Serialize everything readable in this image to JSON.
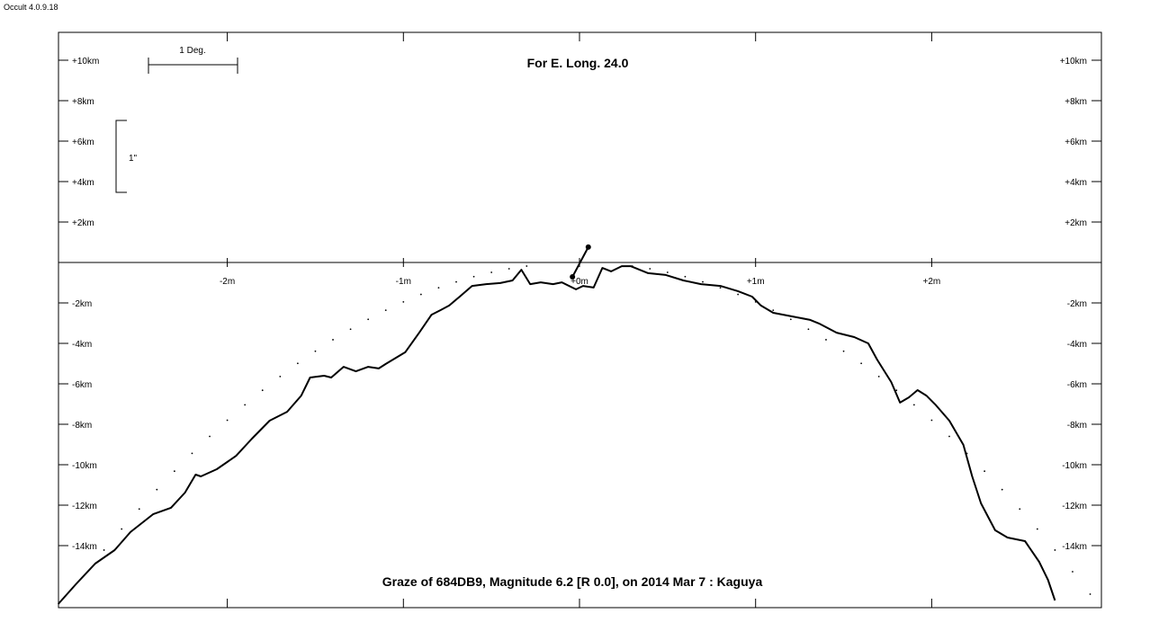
{
  "app_version": "Occult 4.0.9.18",
  "chart_data": {
    "type": "line",
    "title": "For E. Long. 24.0",
    "subtitle": "Graze of  684DB9,  Magnitude 6.2 [R 0.0],  on 2014 Mar  7  :  Kaguya",
    "xlabel": "",
    "ylabel": "",
    "xlim": [
      -3.0,
      2.97
    ],
    "ylim": [
      -17.0,
      11.3
    ],
    "x_ticks": [
      {
        "v": -2,
        "label": "-2m"
      },
      {
        "v": -1,
        "label": "-1m"
      },
      {
        "v": 0,
        "label": "+0m"
      },
      {
        "v": 1,
        "label": "+1m"
      },
      {
        "v": 2,
        "label": "+2m"
      }
    ],
    "y_ticks": [
      {
        "v": 10,
        "label": "+10km"
      },
      {
        "v": 8,
        "label": "+8km"
      },
      {
        "v": 6,
        "label": "+6km"
      },
      {
        "v": 4,
        "label": "+4km"
      },
      {
        "v": 2,
        "label": "+2km"
      },
      {
        "v": -2,
        "label": "-2km"
      },
      {
        "v": -4,
        "label": "-4km"
      },
      {
        "v": -6,
        "label": "-6km"
      },
      {
        "v": -8,
        "label": "-8km"
      },
      {
        "v": -10,
        "label": "-10km"
      },
      {
        "v": -12,
        "label": "-12km"
      },
      {
        "v": -14,
        "label": "-14km"
      }
    ],
    "scale_deg_label": "1 Deg.",
    "scale_arcsec_label": "1\"",
    "series": [
      {
        "name": "limb profile",
        "style": "solid",
        "x": [
          -2.96,
          -2.86,
          -2.75,
          -2.64,
          -2.55,
          -2.42,
          -2.32,
          -2.24,
          -2.18,
          -2.15,
          -2.06,
          -1.95,
          -1.86,
          -1.76,
          -1.66,
          -1.58,
          -1.53,
          -1.45,
          -1.41,
          -1.34,
          -1.27,
          -1.2,
          -1.14,
          -1.1,
          -0.99,
          -0.91,
          -0.84,
          -0.79,
          -0.74,
          -0.68,
          -0.61,
          -0.53,
          -0.45,
          -0.38,
          -0.33,
          -0.28,
          -0.22,
          -0.15,
          -0.1,
          -0.02,
          0.02,
          0.08,
          0.13,
          0.18,
          0.24,
          0.29,
          0.39,
          0.49,
          0.59,
          0.69,
          0.8,
          0.9,
          0.98,
          1.03,
          1.1,
          1.21,
          1.31,
          1.36,
          1.46,
          1.56,
          1.64,
          1.69,
          1.77,
          1.82,
          1.87,
          1.92,
          1.97,
          2.02,
          2.1,
          2.18,
          2.23,
          2.28,
          2.36,
          2.43,
          2.53,
          2.61,
          2.66,
          2.7
        ],
        "y": [
          -16.89,
          -15.91,
          -14.89,
          -14.22,
          -13.33,
          -12.44,
          -12.13,
          -11.38,
          -10.49,
          -10.58,
          -10.22,
          -9.56,
          -8.71,
          -7.82,
          -7.38,
          -6.58,
          -5.69,
          -5.6,
          -5.69,
          -5.16,
          -5.38,
          -5.16,
          -5.24,
          -5.02,
          -4.44,
          -3.47,
          -2.58,
          -2.36,
          -2.13,
          -1.69,
          -1.16,
          -1.07,
          -1.02,
          -0.89,
          -0.36,
          -1.07,
          -0.98,
          -1.07,
          -0.98,
          -1.33,
          -1.16,
          -1.24,
          -0.27,
          -0.44,
          -0.18,
          -0.18,
          -0.53,
          -0.62,
          -0.89,
          -1.07,
          -1.16,
          -1.42,
          -1.69,
          -2.13,
          -2.49,
          -2.67,
          -2.84,
          -3.02,
          -3.47,
          -3.69,
          -4.0,
          -4.8,
          -5.91,
          -6.93,
          -6.67,
          -6.31,
          -6.58,
          -7.02,
          -7.82,
          -9.02,
          -10.58,
          -11.91,
          -13.24,
          -13.6,
          -13.78,
          -14.8,
          -15.69,
          -16.71
        ]
      },
      {
        "name": "mean limb",
        "style": "dotted",
        "x": [
          -2.7,
          -2.6,
          -2.5,
          -2.4,
          -2.3,
          -2.2,
          -2.1,
          -2.0,
          -1.9,
          -1.8,
          -1.7,
          -1.6,
          -1.5,
          -1.4,
          -1.3,
          -1.2,
          -1.1,
          -1.0,
          -0.9,
          -0.8,
          -0.7,
          -0.6,
          -0.5,
          -0.4,
          -0.3,
          0.3,
          0.4,
          0.5,
          0.6,
          0.7,
          0.8,
          0.9,
          1.0,
          1.1,
          1.2,
          1.3,
          1.4,
          1.5,
          1.6,
          1.7,
          1.8,
          1.9,
          2.0,
          2.1,
          2.2,
          2.3,
          2.4,
          2.5,
          2.6,
          2.7,
          2.8,
          2.9
        ],
        "y": [
          -14.22,
          -13.18,
          -12.19,
          -11.23,
          -10.32,
          -9.44,
          -8.6,
          -7.8,
          -7.04,
          -6.32,
          -5.64,
          -4.99,
          -4.39,
          -3.82,
          -3.3,
          -2.81,
          -2.36,
          -1.95,
          -1.58,
          -1.25,
          -0.96,
          -0.7,
          -0.49,
          -0.31,
          -0.18,
          -0.18,
          -0.31,
          -0.49,
          -0.7,
          -0.96,
          -1.25,
          -1.58,
          -1.95,
          -2.36,
          -2.81,
          -3.3,
          -3.82,
          -4.39,
          -4.99,
          -5.64,
          -6.32,
          -7.04,
          -7.8,
          -8.6,
          -9.44,
          -10.32,
          -11.23,
          -12.19,
          -13.18,
          -14.22,
          -15.29,
          -16.4
        ]
      },
      {
        "name": "star path marker",
        "style": "segment",
        "x": [
          -0.04,
          0.05
        ],
        "y": [
          -0.71,
          0.76
        ]
      }
    ]
  }
}
